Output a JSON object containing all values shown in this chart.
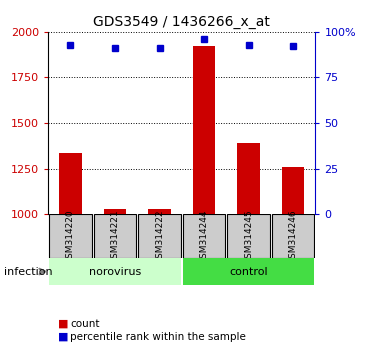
{
  "title": "GDS3549 / 1436266_x_at",
  "samples": [
    "GSM314220",
    "GSM314221",
    "GSM314222",
    "GSM314244",
    "GSM314245",
    "GSM314246"
  ],
  "counts": [
    1335,
    1030,
    1030,
    1920,
    1390,
    1260
  ],
  "percentile_ranks": [
    93,
    91,
    91,
    96,
    93,
    92
  ],
  "ylim_left": [
    1000,
    2000
  ],
  "ylim_right": [
    0,
    100
  ],
  "yticks_left": [
    1000,
    1250,
    1500,
    1750,
    2000
  ],
  "yticks_right": [
    0,
    25,
    50,
    75,
    100
  ],
  "groups": [
    {
      "label": "norovirus",
      "samples": [
        0,
        1,
        2
      ],
      "color": "#ccffcc"
    },
    {
      "label": "control",
      "samples": [
        3,
        4,
        5
      ],
      "color": "#44dd44"
    }
  ],
  "group_label": "infection",
  "bar_color": "#cc0000",
  "dot_color": "#0000cc",
  "bar_width": 0.5,
  "background_color": "#ffffff",
  "sample_box_color": "#cccccc",
  "left_tick_color": "#cc0000",
  "right_tick_color": "#0000cc",
  "legend_items": [
    "count",
    "percentile rank within the sample"
  ],
  "legend_colors": [
    "#cc0000",
    "#0000cc"
  ]
}
